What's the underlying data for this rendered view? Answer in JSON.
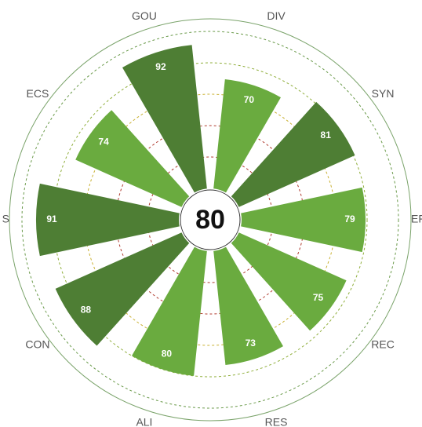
{
  "chart_data": {
    "type": "radial_bar",
    "center_value": 80,
    "categories": [
      "GOU",
      "DIV",
      "SYN",
      "EF",
      "REC",
      "RES",
      "ALI",
      "CON",
      "S",
      "ECS"
    ],
    "values": [
      92,
      70,
      81,
      79,
      75,
      73,
      80,
      88,
      91,
      74
    ],
    "colors": [
      "#4e7e34",
      "#6aab3f",
      "#4e7e34",
      "#6aab3f",
      "#6aab3f",
      "#6aab3f",
      "#6aab3f",
      "#4e7e34",
      "#4e7e34",
      "#6aab3f"
    ],
    "rlim": [
      0,
      100
    ],
    "rticks": [
      20,
      40,
      60,
      80,
      100
    ],
    "grid": true
  }
}
